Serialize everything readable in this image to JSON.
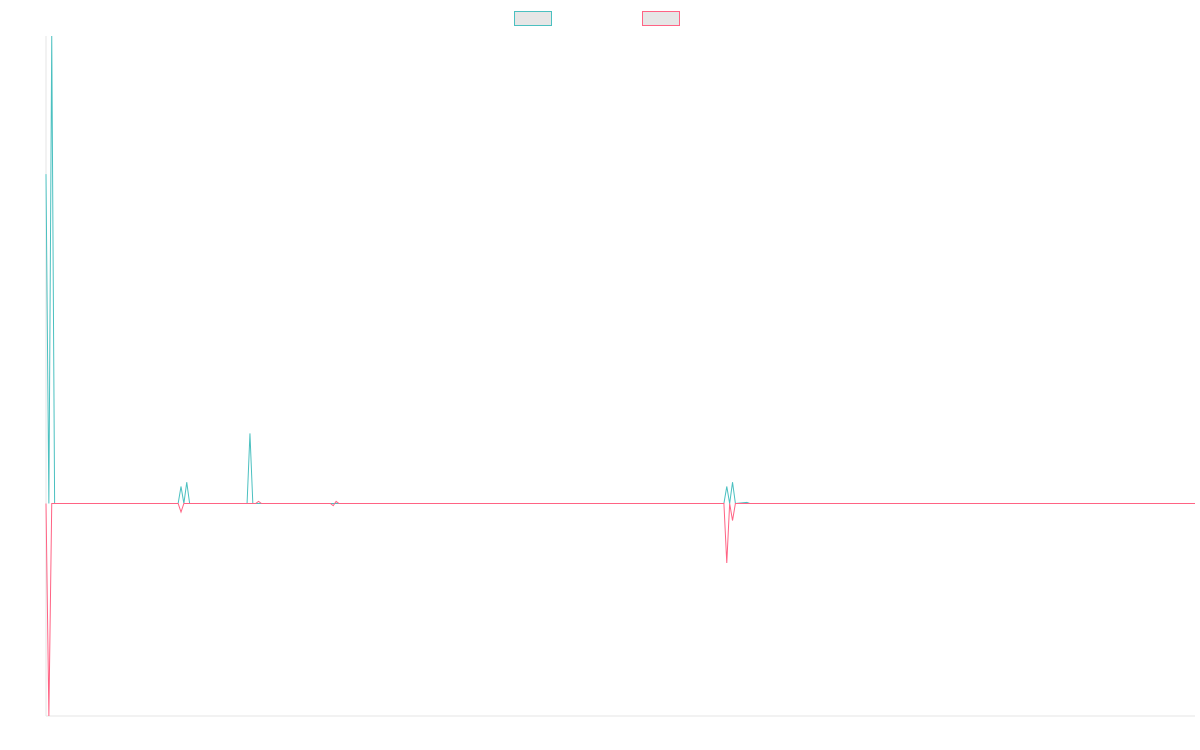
{
  "legend": {
    "items": [
      {
        "series_index": 0,
        "label": "",
        "color": "#4bc0c0"
      },
      {
        "series_index": 1,
        "label": "",
        "color": "#ff6384"
      }
    ]
  },
  "chart_data": {
    "type": "line",
    "title": "",
    "xlabel": "",
    "ylabel": "",
    "ylim": [
      -100,
      220
    ],
    "xlim": [
      0,
      400
    ],
    "grid": false,
    "legend_position": "top",
    "series": [
      {
        "color": "#4bc0c0",
        "points": [
          [
            0,
            155
          ],
          [
            1,
            0
          ],
          [
            2,
            220
          ],
          [
            3,
            0
          ],
          [
            46,
            0
          ],
          [
            47,
            8
          ],
          [
            48,
            0
          ],
          [
            49,
            10
          ],
          [
            50,
            0
          ],
          [
            70,
            0
          ],
          [
            71,
            33
          ],
          [
            72,
            0
          ],
          [
            73,
            0
          ],
          [
            236,
            0
          ],
          [
            237,
            8
          ],
          [
            238,
            0
          ],
          [
            239,
            10
          ],
          [
            240,
            0
          ],
          [
            244,
            0.5
          ],
          [
            245,
            0
          ],
          [
            400,
            0
          ]
        ]
      },
      {
        "color": "#ff6384",
        "points": [
          [
            0,
            0
          ],
          [
            1,
            -100
          ],
          [
            2,
            0
          ],
          [
            46,
            0
          ],
          [
            47,
            -4
          ],
          [
            48,
            0
          ],
          [
            73,
            0
          ],
          [
            74,
            1
          ],
          [
            75,
            0
          ],
          [
            99,
            0
          ],
          [
            100,
            -1
          ],
          [
            100.5,
            0
          ],
          [
            101,
            1
          ],
          [
            102,
            0
          ],
          [
            236,
            0
          ],
          [
            237,
            -28
          ],
          [
            238,
            0
          ],
          [
            239,
            -8
          ],
          [
            240,
            0
          ],
          [
            400,
            0
          ]
        ]
      }
    ]
  }
}
